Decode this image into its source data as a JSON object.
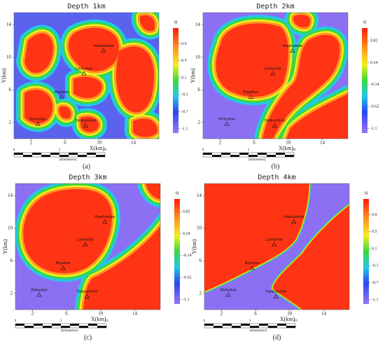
{
  "sites": [
    {
      "name": "Huashuishan",
      "x": 10.5,
      "y": 10.8
    },
    {
      "name": "Laohushan",
      "x": 8.2,
      "y": 8.0
    },
    {
      "name": "Bojushan",
      "x": 5.6,
      "y": 5.1
    },
    {
      "name": "Wohushan",
      "x": 2.8,
      "y": 1.8
    },
    {
      "name": "Yaoquanshan",
      "x": 8.4,
      "y": 1.6
    }
  ],
  "scale_bar": {
    "labels": [
      "0",
      "5",
      "10"
    ],
    "unit": "(kilometers)"
  },
  "panels": [
    {
      "title": "Depth 1km",
      "caption": "(a)",
      "xlabel": "X(km)",
      "ylabel": "Y(km)",
      "xlim": [
        0,
        17
      ],
      "ylim": [
        0,
        15.5
      ],
      "xticks": [
        2,
        6,
        10,
        14
      ],
      "yticks": [
        2,
        6,
        10,
        14
      ],
      "colorbar": {
        "label": "SI",
        "lim": [
          -1.2,
          1.27
        ],
        "ticks": [
          0.9,
          0.5,
          0.1,
          -0.3,
          -0.7,
          -1.1
        ]
      }
    },
    {
      "title": "Depth 2km",
      "caption": "(b)",
      "xlabel": "X(km)",
      "ylabel": "Y(km)",
      "xlim": [
        0,
        17
      ],
      "ylim": [
        0,
        15.5
      ],
      "xticks": [
        2,
        6,
        10,
        14
      ],
      "yticks": [
        2,
        6,
        10,
        14
      ],
      "colorbar": {
        "label": "SI",
        "lim": [
          -1.2,
          1.1
        ],
        "ticks": [
          0.82,
          0.34,
          -0.14,
          -0.62,
          -1.1
        ]
      }
    },
    {
      "title": "Depth 3km",
      "caption": "(c)",
      "xlabel": "X(km)",
      "ylabel": "Y(km)",
      "xlim": [
        0,
        17
      ],
      "ylim": [
        0,
        15.5
      ],
      "xticks": [
        2,
        6,
        10,
        14
      ],
      "yticks": [
        2,
        6,
        10,
        14
      ],
      "colorbar": {
        "label": "SI",
        "lim": [
          -1.2,
          1.1
        ],
        "ticks": [
          0.82,
          0.34,
          -0.14,
          -0.62,
          -1.1
        ]
      }
    },
    {
      "title": "Depth 4km",
      "caption": "(d)",
      "xlabel": "X(km)",
      "ylabel": "Y(km)",
      "xlim": [
        0,
        17
      ],
      "ylim": [
        0,
        15.5
      ],
      "xticks": [
        2,
        6,
        10,
        14
      ],
      "yticks": [
        2,
        6,
        10,
        14
      ],
      "colorbar": {
        "label": "SI",
        "lim": [
          -1.2,
          1.27
        ],
        "ticks": [
          0.9,
          0.5,
          0.1,
          -0.3,
          -0.7,
          -1.1
        ]
      }
    }
  ]
}
